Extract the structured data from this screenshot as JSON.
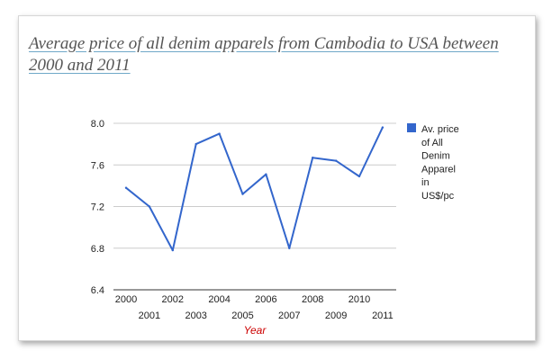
{
  "chart_data": {
    "type": "line",
    "title": "Average price of all denim apparels from Cambodia to USA between 2000 and 2011",
    "xlabel": "Year",
    "ylabel": "",
    "categories": [
      "2000",
      "2001",
      "2002",
      "2003",
      "2004",
      "2005",
      "2006",
      "2007",
      "2008",
      "2009",
      "2010",
      "2011"
    ],
    "series": [
      {
        "name": "Av. price of All Denim Apparel in US$/pc",
        "values": [
          7.38,
          7.2,
          6.78,
          7.8,
          7.9,
          7.32,
          7.51,
          6.8,
          7.67,
          7.64,
          7.49,
          7.96
        ],
        "color": "#3366cc"
      }
    ],
    "ylim": [
      6.4,
      8.0
    ],
    "yticks": [
      "6.4",
      "6.8",
      "7.2",
      "7.6",
      "8.0"
    ],
    "grid": true,
    "legend_position": "right",
    "legend_lines": [
      "Av. price",
      "of All",
      "Denim",
      "Apparel",
      "in",
      "US$/pc"
    ],
    "xlabel_color": "#cc0000"
  }
}
